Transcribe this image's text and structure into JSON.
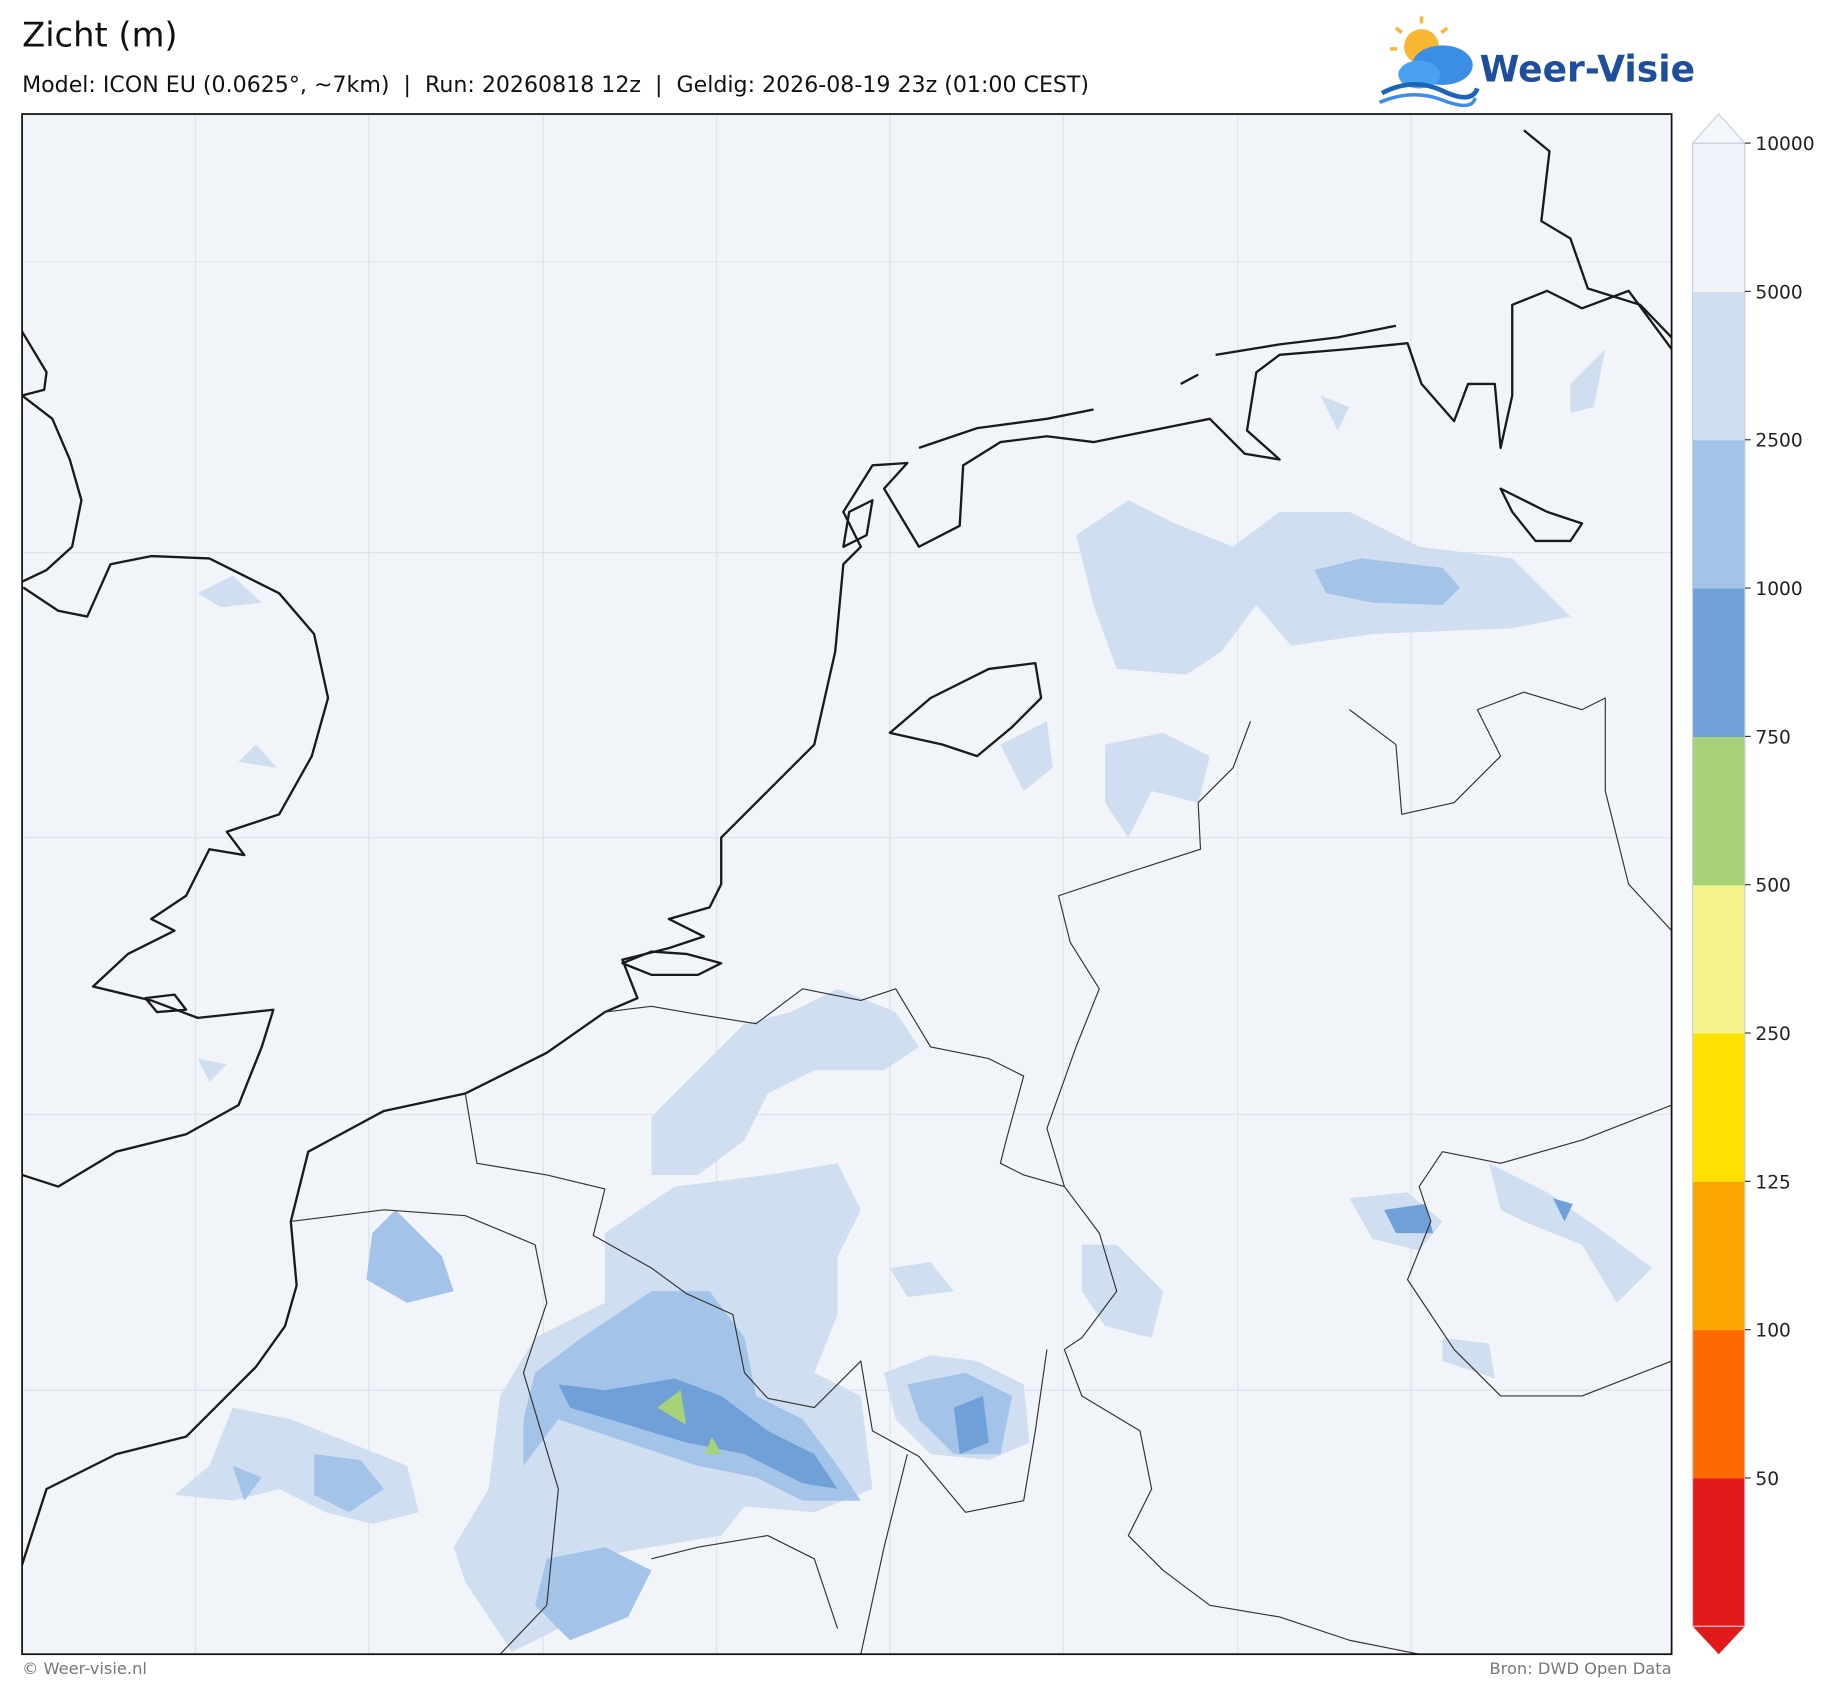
{
  "header": {
    "title": "Zicht (m)",
    "subtitle": "Model: ICON EU (0.0625°, ~7km)  |  Run: 20260818 12z  |  Geldig: 2026-08-19 23z (01:00 CEST)"
  },
  "logo": {
    "text": "Weer-Visie"
  },
  "colorbar": {
    "levels": [
      50,
      100,
      125,
      250,
      500,
      750,
      1000,
      2500,
      5000,
      10000
    ],
    "colors": [
      "#e31a1c",
      "#ff6a00",
      "#ffa500",
      "#ffe000",
      "#f5f38a",
      "#a8d27a",
      "#6fa0d8",
      "#a4c3e8",
      "#cfdef0",
      "#eef3fa",
      "#f3f6fb"
    ]
  },
  "footer": {
    "left": "© Weer-visie.nl",
    "right": "Bron: DWD Open Data"
  }
}
